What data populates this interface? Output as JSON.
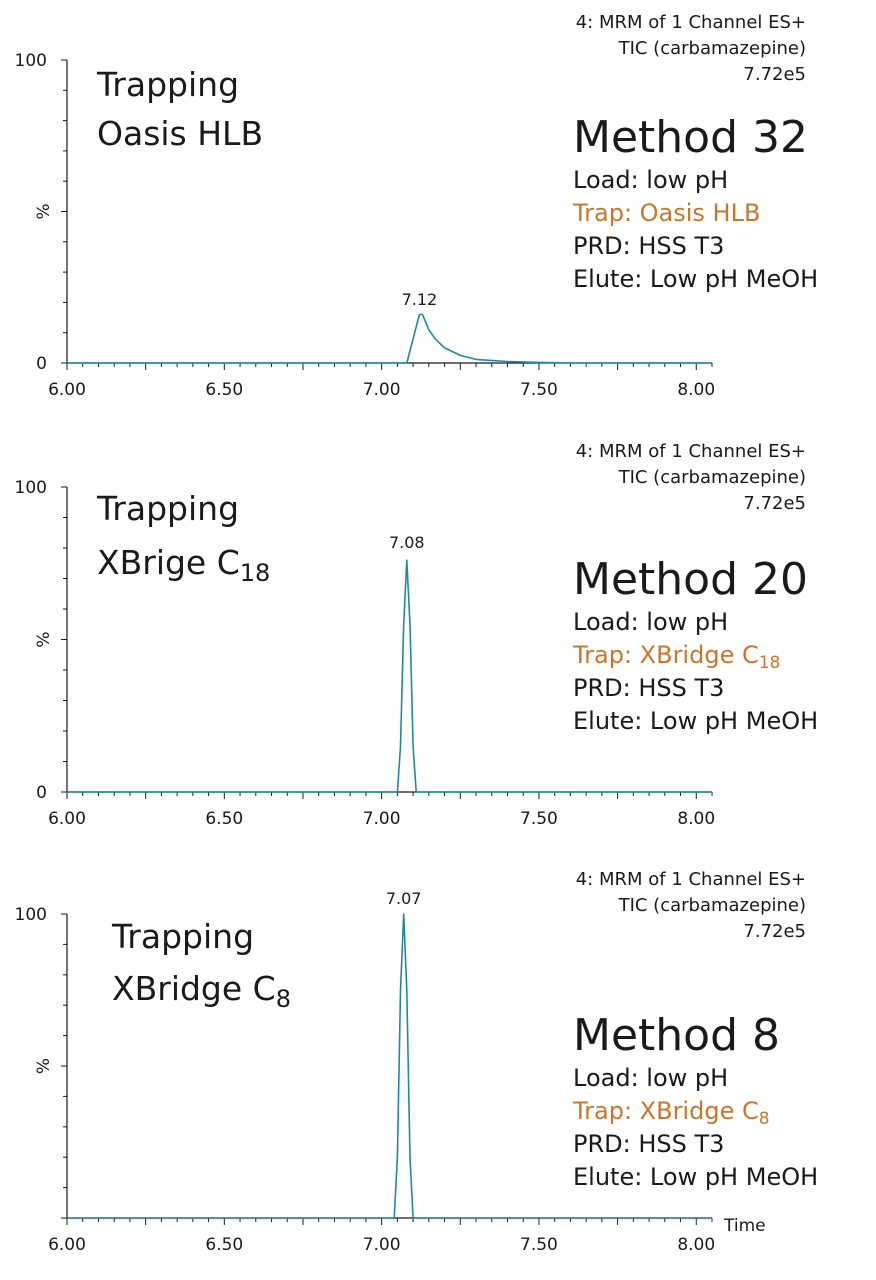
{
  "colors": {
    "trace": "#1f8a9a",
    "trap": "#c8772a",
    "axis": "#1a1a1a",
    "text": "#1a1a1a"
  },
  "chart_data": [
    {
      "type": "line",
      "header": [
        "4: MRM of 1 Channel ES+",
        "TIC (carbamazepine)",
        "7.72e5"
      ],
      "trapping": {
        "line1": "Trapping",
        "line2_base": "Oasis HLB",
        "line2_sub": ""
      },
      "method": {
        "title": "Method 32",
        "load": "Load: low pH",
        "trap_base": "Trap: Oasis HLB",
        "trap_sub": "",
        "prd": "PRD: HSS T3",
        "elute": "Elute: Low pH MeOH"
      },
      "ylabel": "%",
      "y_ticks": [
        "100",
        "0"
      ],
      "ylim": [
        0,
        100
      ],
      "xlim": [
        6.0,
        8.05
      ],
      "x_ticks": [
        "6.00",
        "6.50",
        "7.00",
        "7.50",
        "8.00"
      ],
      "xlabel": "",
      "peak_label": "7.12",
      "series": [
        {
          "x": [
            6.0,
            7.08,
            7.1,
            7.12,
            7.13,
            7.15,
            7.17,
            7.2,
            7.25,
            7.3,
            7.4,
            7.5,
            7.6,
            8.05
          ],
          "y": [
            0,
            0,
            8,
            16,
            16,
            11,
            8,
            5,
            2.5,
            1.2,
            0.5,
            0.2,
            0,
            0
          ]
        }
      ]
    },
    {
      "type": "line",
      "header": [
        "4: MRM of 1 Channel ES+",
        "TIC (carbamazepine)",
        "7.72e5"
      ],
      "trapping": {
        "line1": "Trapping",
        "line2_base": "XBrige C",
        "line2_sub": "18"
      },
      "method": {
        "title": "Method 20",
        "load": "Load: low pH",
        "trap_base": "Trap: XBridge C",
        "trap_sub": "18",
        "prd": "PRD: HSS T3",
        "elute": "Elute: Low pH MeOH"
      },
      "ylabel": "%",
      "y_ticks": [
        "100",
        "0"
      ],
      "ylim": [
        0,
        100
      ],
      "xlim": [
        6.0,
        8.05
      ],
      "x_ticks": [
        "6.00",
        "6.50",
        "7.00",
        "7.50",
        "8.00"
      ],
      "xlabel": "",
      "peak_label": "7.08",
      "series": [
        {
          "x": [
            6.0,
            7.05,
            7.06,
            7.07,
            7.08,
            7.09,
            7.1,
            7.11,
            8.05
          ],
          "y": [
            0,
            0,
            15,
            55,
            76,
            55,
            15,
            0,
            0
          ]
        }
      ]
    },
    {
      "type": "line",
      "header": [
        "4: MRM of 1 Channel ES+",
        "TIC (carbamazepine)",
        "7.72e5"
      ],
      "trapping": {
        "line1": "Trapping",
        "line2_base": "XBridge C",
        "line2_sub": "8"
      },
      "method": {
        "title": "Method 8",
        "load": "Load: low pH",
        "trap_base": "Trap: XBridge C",
        "trap_sub": "8",
        "prd": "PRD: HSS T3",
        "elute": "Elute: Low pH MeOH"
      },
      "ylabel": "%",
      "y_ticks": [
        "100"
      ],
      "ylim": [
        0,
        100
      ],
      "xlim": [
        6.0,
        8.05
      ],
      "x_ticks": [
        "6.00",
        "6.50",
        "7.00",
        "7.50",
        "8.00"
      ],
      "xlabel": "Time",
      "peak_label": "7.07",
      "series": [
        {
          "x": [
            6.0,
            7.04,
            7.05,
            7.06,
            7.07,
            7.08,
            7.09,
            7.1,
            8.05
          ],
          "y": [
            0,
            0,
            20,
            75,
            100,
            75,
            20,
            0,
            0
          ]
        }
      ]
    }
  ]
}
